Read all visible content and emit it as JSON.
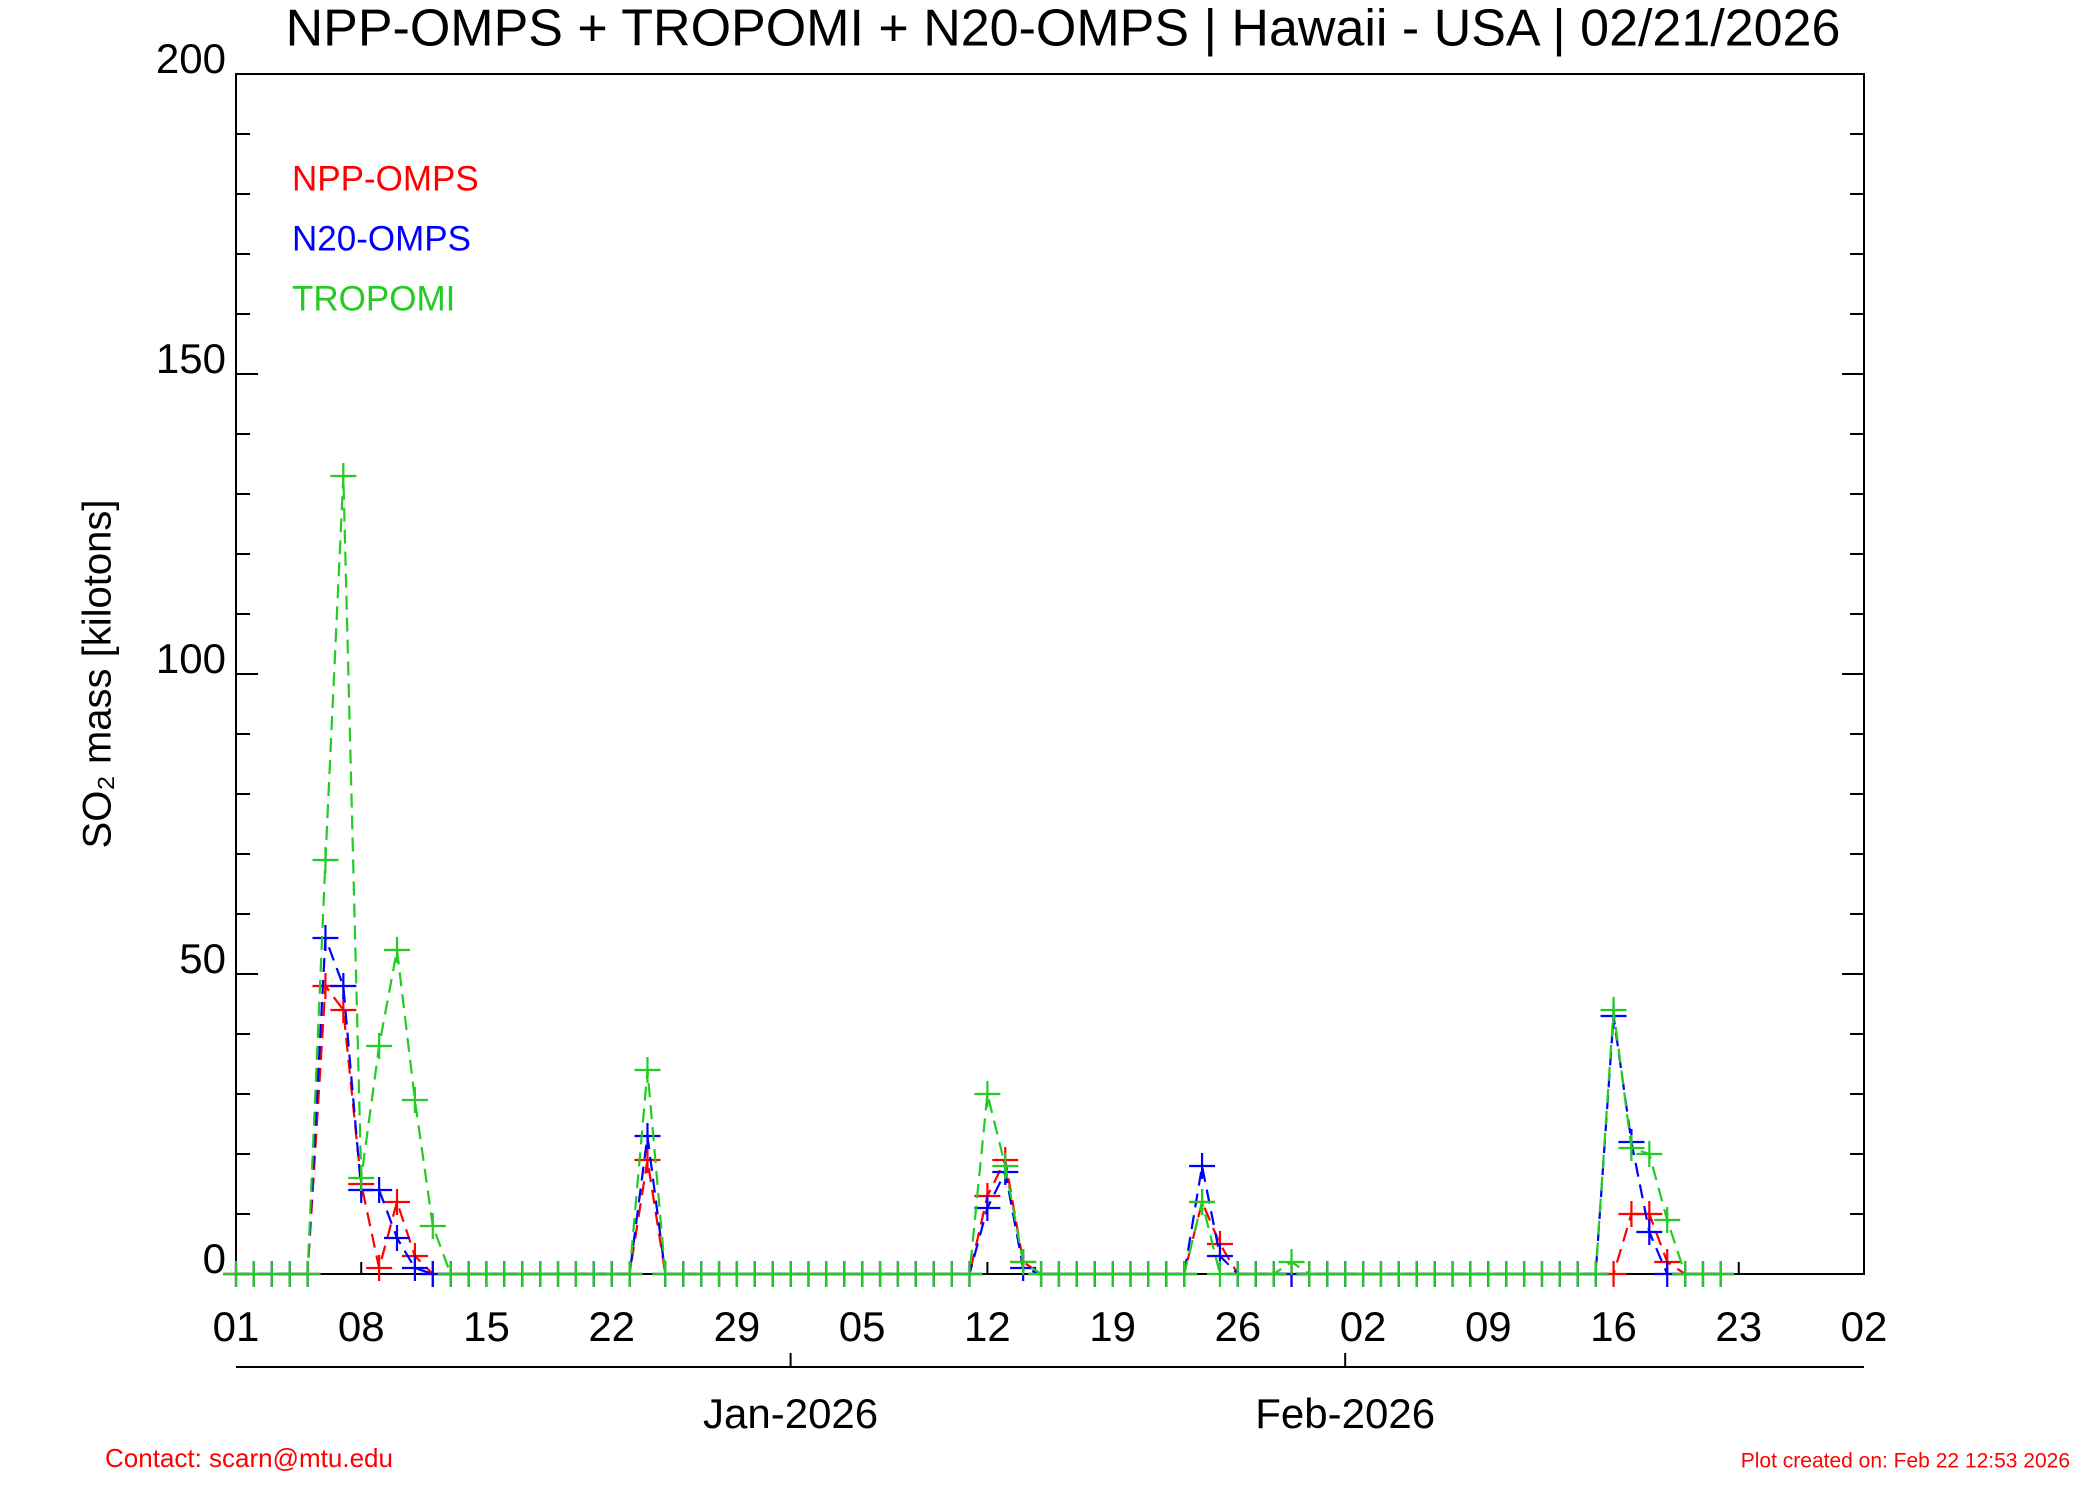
{
  "chart_data": {
    "type": "line",
    "title": "NPP-OMPS + TROPOMI + N20-OMPS | Hawaii - USA | 02/21/2026",
    "ylabel": "SO₂ mass [kilotons]",
    "x": [
      0,
      1,
      2,
      3,
      4,
      5,
      6,
      7,
      8,
      9,
      10,
      11,
      12,
      13,
      14,
      15,
      16,
      17,
      18,
      19,
      20,
      21,
      22,
      23,
      24,
      25,
      26,
      27,
      28,
      29,
      30,
      31,
      32,
      33,
      34,
      35,
      36,
      37,
      38,
      39,
      40,
      41,
      42,
      43,
      44,
      45,
      46,
      47,
      48,
      49,
      50,
      51,
      52,
      53,
      54,
      55,
      56,
      57,
      58,
      59,
      60,
      61,
      62,
      63,
      64,
      65,
      66,
      67,
      68,
      69,
      70,
      71,
      72,
      73,
      74,
      75,
      76,
      77,
      78,
      79,
      80,
      81,
      82,
      83
    ],
    "series": [
      {
        "name": "NPP-OMPS",
        "color": "#ff0000",
        "values": [
          0,
          0,
          0,
          0,
          0,
          48,
          44,
          15,
          1,
          12,
          3,
          0,
          0,
          0,
          0,
          0,
          0,
          0,
          0,
          0,
          0,
          0,
          0,
          19,
          0,
          0,
          0,
          0,
          0,
          0,
          0,
          0,
          0,
          0,
          0,
          0,
          0,
          0,
          0,
          0,
          0,
          0,
          13,
          19,
          2,
          0,
          0,
          0,
          0,
          0,
          0,
          0,
          0,
          0,
          12,
          5,
          0,
          0,
          0,
          0,
          0,
          0,
          0,
          0,
          0,
          0,
          0,
          0,
          0,
          0,
          0,
          0,
          0,
          0,
          0,
          0,
          0,
          0,
          10,
          10,
          2,
          0,
          0,
          0
        ]
      },
      {
        "name": "N20-OMPS",
        "color": "#0000ff",
        "values": [
          0,
          0,
          0,
          0,
          0,
          56,
          48,
          14,
          14,
          6,
          1,
          0,
          0,
          0,
          0,
          0,
          0,
          0,
          0,
          0,
          0,
          0,
          0,
          23,
          0,
          0,
          0,
          0,
          0,
          0,
          0,
          0,
          0,
          0,
          0,
          0,
          0,
          0,
          0,
          0,
          0,
          0,
          11,
          17,
          1,
          0,
          0,
          0,
          0,
          0,
          0,
          0,
          0,
          0,
          18,
          3,
          0,
          0,
          0,
          0,
          0,
          0,
          0,
          0,
          0,
          0,
          0,
          0,
          0,
          0,
          0,
          0,
          0,
          0,
          0,
          0,
          0,
          43,
          22,
          7,
          0,
          0,
          0,
          0
        ]
      },
      {
        "name": "TROPOMI",
        "color": "#22cc22",
        "values": [
          0,
          0,
          0,
          0,
          0,
          69,
          133,
          16,
          38,
          54,
          29,
          8,
          0,
          0,
          0,
          0,
          0,
          0,
          0,
          0,
          0,
          0,
          0,
          34,
          0,
          0,
          0,
          0,
          0,
          0,
          0,
          0,
          0,
          0,
          0,
          0,
          0,
          0,
          0,
          0,
          0,
          0,
          30,
          18,
          2,
          0,
          0,
          0,
          0,
          0,
          0,
          0,
          0,
          0,
          12,
          0,
          0,
          0,
          0,
          2,
          0,
          0,
          0,
          0,
          0,
          0,
          0,
          0,
          0,
          0,
          0,
          0,
          0,
          0,
          0,
          0,
          0,
          44,
          21,
          20,
          9,
          0,
          0,
          0
        ]
      }
    ],
    "xlim": [
      0,
      91
    ],
    "xticks": [
      {
        "value": 0,
        "label": "01"
      },
      {
        "value": 7,
        "label": "08"
      },
      {
        "value": 14,
        "label": "15"
      },
      {
        "value": 21,
        "label": "22"
      },
      {
        "value": 28,
        "label": "29"
      },
      {
        "value": 35,
        "label": "05"
      },
      {
        "value": 42,
        "label": "12"
      },
      {
        "value": 49,
        "label": "19"
      },
      {
        "value": 56,
        "label": "26"
      },
      {
        "value": 63,
        "label": "02"
      },
      {
        "value": 70,
        "label": "09"
      },
      {
        "value": 77,
        "label": "16"
      },
      {
        "value": 84,
        "label": "23"
      },
      {
        "value": 91,
        "label": "02"
      }
    ],
    "monthticks": [
      {
        "value": 31,
        "label": "Jan-2026"
      },
      {
        "value": 62,
        "label": "Feb-2026"
      }
    ],
    "ylim": [
      0,
      200
    ],
    "yticks": [
      0,
      50,
      100,
      150,
      200
    ],
    "yminorticks": [
      10,
      20,
      30,
      40,
      60,
      70,
      80,
      90,
      110,
      120,
      130,
      140,
      160,
      170,
      180,
      190
    ],
    "footer_left": "Contact: scarn@mtu.edu",
    "footer_right": "Plot created on: Feb 22 12:53 2026"
  }
}
